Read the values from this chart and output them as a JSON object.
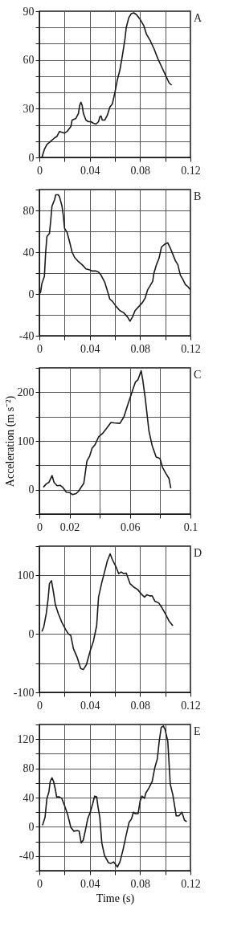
{
  "chart_data": [
    {
      "type": "line",
      "annotations": [
        "A"
      ],
      "grid": true,
      "xlim": [
        0,
        0.12
      ],
      "xticks": [
        0,
        {
          "value": 0.02,
          "label": null
        },
        0.04,
        {
          "value": 0.06,
          "label": null
        },
        0.08,
        {
          "value": 0.1,
          "label": null
        },
        0.12
      ],
      "ylim": [
        0,
        90
      ],
      "yticks": [
        0,
        {
          "value": 10,
          "label": null
        },
        {
          "value": 20,
          "label": null
        },
        30,
        {
          "value": 40,
          "label": null
        },
        {
          "value": 50,
          "label": null
        },
        60,
        {
          "value": 70,
          "label": null
        },
        {
          "value": 80,
          "label": null
        },
        90
      ],
      "series": [
        {
          "color": "#1a1a1a",
          "x": [
            0.002,
            0.004,
            0.006,
            0.009,
            0.012,
            0.014,
            0.016,
            0.018,
            0.02,
            0.022,
            0.025,
            0.026,
            0.029,
            0.031,
            0.032,
            0.033,
            0.034,
            0.035,
            0.037,
            0.039,
            0.041,
            0.043,
            0.045,
            0.047,
            0.048,
            0.049,
            0.05,
            0.052,
            0.054,
            0.056,
            0.058,
            0.06,
            0.062,
            0.064,
            0.066,
            0.068,
            0.069,
            0.071,
            0.073,
            0.075,
            0.077,
            0.08,
            0.083,
            0.085,
            0.088,
            0.091,
            0.094,
            0.097,
            0.1,
            0.103,
            0.105
          ],
          "values": [
            0,
            5,
            8,
            10,
            12,
            13,
            16,
            15.5,
            15,
            16,
            19,
            23,
            24,
            27,
            32,
            34,
            32,
            27,
            23,
            22,
            22,
            21,
            20.5,
            22,
            25,
            25.5,
            23,
            23,
            26,
            31,
            33,
            40,
            48,
            54,
            63,
            73,
            80,
            86,
            88.5,
            89,
            88,
            85,
            81,
            76,
            72,
            67,
            61,
            56,
            51,
            46,
            44.5
          ]
        }
      ]
    },
    {
      "type": "line",
      "annotations": [
        "B"
      ],
      "grid": true,
      "xlim": [
        0,
        0.12
      ],
      "xticks": [
        0,
        {
          "value": 0.02,
          "label": null
        },
        0.04,
        {
          "value": 0.06,
          "label": null
        },
        0.08,
        {
          "value": 0.1,
          "label": null
        },
        0.12
      ],
      "ylim": [
        -40,
        100
      ],
      "yticks": [
        -40,
        {
          "value": -20,
          "label": null
        },
        0,
        {
          "value": 20,
          "label": null
        },
        40,
        {
          "value": 60,
          "label": null
        },
        80,
        {
          "value": 100,
          "label": null
        }
      ],
      "series": [
        {
          "color": "#1a1a1a",
          "x": [
            0,
            0.001,
            0.002,
            0.004,
            0.005,
            0.006,
            0.008,
            0.009,
            0.01,
            0.012,
            0.013,
            0.015,
            0.016,
            0.018,
            0.019,
            0.02,
            0.022,
            0.024,
            0.026,
            0.028,
            0.031,
            0.034,
            0.037,
            0.04,
            0.042,
            0.045,
            0.047,
            0.049,
            0.052,
            0.054,
            0.056,
            0.058,
            0.061,
            0.064,
            0.067,
            0.07,
            0.072,
            0.074,
            0.076,
            0.079,
            0.082,
            0.084,
            0.086,
            0.088,
            0.09,
            0.091,
            0.093,
            0.095,
            0.097,
            0.099,
            0.1,
            0.102,
            0.104,
            0.106,
            0.108,
            0.11,
            0.112,
            0.114,
            0.116,
            0.118,
            0.12
          ],
          "values": [
            0,
            2,
            10,
            17,
            40,
            55,
            58,
            70,
            84,
            90,
            95,
            95,
            93,
            84,
            75,
            63,
            59,
            50,
            40,
            35,
            31,
            28,
            24,
            23,
            22,
            22,
            21,
            18,
            11,
            3,
            -5,
            -7,
            -12,
            -16,
            -18,
            -22,
            -26,
            -22,
            -16,
            -12,
            -8,
            -4,
            4,
            8,
            12,
            20,
            28,
            34,
            45,
            47,
            48,
            49,
            44,
            38,
            32,
            28,
            18,
            14,
            9,
            7,
            4
          ]
        }
      ]
    },
    {
      "type": "line",
      "annotations": [
        "C"
      ],
      "ylabel": "Acceleration (m s⁻²)",
      "grid": true,
      "xlim": [
        0,
        0.1
      ],
      "xticks": [
        0,
        0.02,
        {
          "value": 0.04,
          "label": null
        },
        0.06,
        {
          "value": 0.08,
          "label": null
        },
        0.1
      ],
      "ylim": [
        -50,
        250
      ],
      "yticks": [
        {
          "value": -50,
          "label": null
        },
        0,
        {
          "value": 50,
          "label": null
        },
        100,
        {
          "value": 150,
          "label": null
        },
        200,
        {
          "value": 250,
          "label": null
        }
      ],
      "series": [
        {
          "color": "#1a1a1a",
          "x": [
            0.0026,
            0.0046,
            0.0063,
            0.0084,
            0.0097,
            0.0118,
            0.0137,
            0.0157,
            0.0178,
            0.02,
            0.022,
            0.0243,
            0.026,
            0.0274,
            0.0294,
            0.0315,
            0.0333,
            0.0349,
            0.0368,
            0.0393,
            0.0417,
            0.0445,
            0.0474,
            0.0496,
            0.0533,
            0.0559,
            0.0585,
            0.0602,
            0.0616,
            0.0636,
            0.0653,
            0.0674,
            0.0684,
            0.0701,
            0.0725,
            0.0747,
            0.0773,
            0.0798,
            0.0815,
            0.0838,
            0.0858,
            0.087
          ],
          "values": [
            5,
            12,
            15,
            29,
            15,
            8,
            9,
            4,
            -5,
            -6,
            -10,
            -8,
            -3,
            4,
            13,
            59,
            69,
            85,
            92,
            109,
            115,
            126,
            138,
            137,
            136,
            149,
            174,
            190,
            203,
            221,
            226,
            244,
            226,
            187,
            121,
            90,
            67,
            64,
            46,
            33,
            23,
            3
          ]
        }
      ]
    },
    {
      "type": "line",
      "annotations": [
        "D"
      ],
      "grid": true,
      "xlim": [
        0,
        0.12
      ],
      "xticks": [
        0,
        {
          "value": 0.02,
          "label": null
        },
        0.04,
        {
          "value": 0.06,
          "label": null
        },
        0.08,
        {
          "value": 0.1,
          "label": null
        },
        0.12
      ],
      "ylim": [
        -100,
        150
      ],
      "yticks": [
        -100,
        {
          "value": -50,
          "label": null
        },
        0,
        {
          "value": 50,
          "label": null
        },
        100,
        {
          "value": 150,
          "label": null
        }
      ],
      "series": [
        {
          "color": "#1a1a1a",
          "x": [
            0.002,
            0.0035,
            0.0055,
            0.007,
            0.008,
            0.0096,
            0.011,
            0.0127,
            0.015,
            0.0178,
            0.021,
            0.023,
            0.025,
            0.027,
            0.03,
            0.0328,
            0.0349,
            0.0373,
            0.0404,
            0.043,
            0.0455,
            0.047,
            0.0496,
            0.052,
            0.054,
            0.0562,
            0.058,
            0.061,
            0.063,
            0.065,
            0.067,
            0.069,
            0.072,
            0.075,
            0.078,
            0.0815,
            0.0835,
            0.0855,
            0.0876,
            0.0896,
            0.0917,
            0.0948,
            0.097,
            0.0999,
            0.103,
            0.106
          ],
          "values": [
            4,
            12,
            35,
            61,
            86,
            91,
            74,
            50,
            35,
            20,
            7,
            0,
            -3,
            -25,
            -40,
            -59,
            -61,
            -53,
            -29,
            -12,
            14,
            63,
            88,
            108,
            125,
            137,
            127,
            114,
            103,
            106,
            103,
            104,
            86,
            80,
            76,
            67,
            63,
            67,
            65,
            65,
            56,
            53,
            46,
            35,
            22,
            14
          ]
        }
      ]
    },
    {
      "type": "line",
      "annotations": [
        "E"
      ],
      "xlabel": "Time (s)",
      "grid": true,
      "xlim": [
        0,
        0.12
      ],
      "xticks": [
        0,
        {
          "value": 0.02,
          "label": null
        },
        0.04,
        {
          "value": 0.06,
          "label": null
        },
        0.08,
        {
          "value": 0.1,
          "label": null
        },
        0.12
      ],
      "ylim": [
        -60,
        140
      ],
      "yticks": [
        {
          "value": -60,
          "label": null
        },
        -40,
        {
          "value": -20,
          "label": null
        },
        0,
        {
          "value": 20,
          "label": null
        },
        40,
        {
          "value": 60,
          "label": null
        },
        80,
        {
          "value": 100,
          "label": null
        },
        120,
        {
          "value": 140,
          "label": null
        }
      ],
      "series": [
        {
          "color": "#1a1a1a",
          "x": [
            0.0025,
            0.0045,
            0.006,
            0.0076,
            0.0086,
            0.01,
            0.0113,
            0.0127,
            0.0137,
            0.0158,
            0.0178,
            0.02,
            0.0226,
            0.025,
            0.0275,
            0.03,
            0.0316,
            0.0332,
            0.0349,
            0.037,
            0.0384,
            0.0404,
            0.0424,
            0.0439,
            0.0455,
            0.0466,
            0.048,
            0.0496,
            0.0517,
            0.0548,
            0.0568,
            0.0589,
            0.0603,
            0.062,
            0.064,
            0.0665,
            0.069,
            0.0712,
            0.0732,
            0.0747,
            0.0763,
            0.0784,
            0.08,
            0.0814,
            0.0835,
            0.0845,
            0.087,
            0.0896,
            0.0917,
            0.0937,
            0.0952,
            0.0968,
            0.0985,
            0.0999,
            0.102,
            0.104,
            0.106,
            0.1087,
            0.1108,
            0.1132,
            0.1153,
            0.117
          ],
          "values": [
            2,
            13,
            39,
            48,
            62,
            67,
            62,
            51,
            41,
            41,
            39,
            29,
            16,
            -1,
            -6,
            -5,
            -6,
            -22,
            -18,
            -1,
            11,
            20,
            32,
            42,
            41,
            27,
            13,
            -22,
            -39,
            -49,
            -50,
            -48,
            -51,
            -55,
            -48,
            -31,
            -11,
            6,
            11,
            20,
            18,
            18,
            35,
            42,
            39,
            46,
            53,
            62,
            81,
            93,
            117,
            136,
            138,
            133,
            117,
            58,
            44,
            15,
            15,
            20,
            9,
            7
          ]
        }
      ]
    }
  ]
}
